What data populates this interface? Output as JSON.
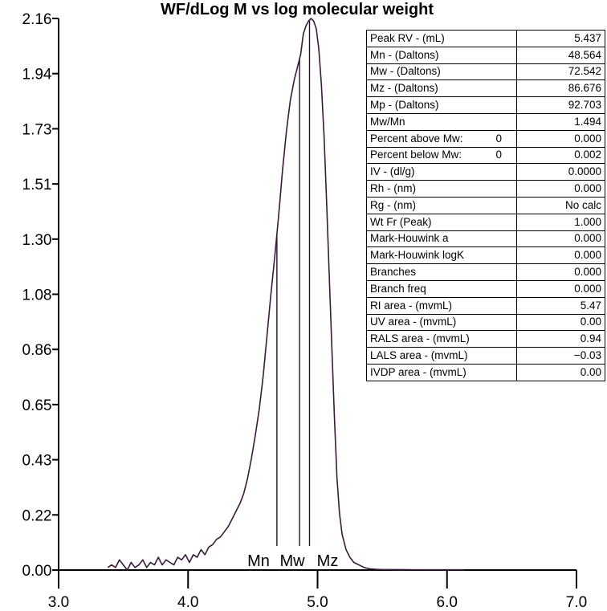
{
  "chart_data": {
    "type": "line",
    "title": "WF/dLog M vs log molecular weight",
    "xlabel": "",
    "ylabel": "",
    "xlim": [
      3.0,
      7.0
    ],
    "ylim": [
      0.0,
      2.16
    ],
    "x_ticks": [
      "3.0",
      "4.0",
      "5.0",
      "6.0",
      "7.0"
    ],
    "y_ticks": [
      "0.00",
      "0.22",
      "0.43",
      "0.65",
      "0.86",
      "1.08",
      "1.30",
      "1.51",
      "1.73",
      "1.94",
      "2.16"
    ],
    "series": [
      {
        "name": "WF/dLog M",
        "color": "#3a1a3a",
        "x": [
          3.38,
          3.41,
          3.44,
          3.47,
          3.5,
          3.53,
          3.56,
          3.59,
          3.62,
          3.65,
          3.68,
          3.71,
          3.74,
          3.77,
          3.8,
          3.83,
          3.86,
          3.89,
          3.92,
          3.95,
          3.98,
          4.01,
          4.04,
          4.07,
          4.1,
          4.13,
          4.16,
          4.19,
          4.22,
          4.25,
          4.28,
          4.31,
          4.34,
          4.37,
          4.4,
          4.43,
          4.46,
          4.49,
          4.52,
          4.55,
          4.58,
          4.61,
          4.64,
          4.67,
          4.7,
          4.73,
          4.76,
          4.79,
          4.82,
          4.85,
          4.87,
          4.89,
          4.91,
          4.93,
          4.95,
          4.97,
          4.99,
          5.01,
          5.03,
          5.05,
          5.07,
          5.09,
          5.11,
          5.13,
          5.15,
          5.17,
          5.19,
          5.22,
          5.25,
          5.28,
          5.32,
          5.36,
          5.4,
          5.45,
          5.5,
          5.6,
          5.75,
          5.9,
          6.05,
          6.13
        ],
        "y": [
          0.01,
          0.02,
          0.01,
          0.04,
          0.02,
          0.0,
          0.03,
          0.01,
          0.02,
          0.04,
          0.01,
          0.03,
          0.02,
          0.05,
          0.02,
          0.04,
          0.03,
          0.02,
          0.05,
          0.04,
          0.06,
          0.03,
          0.06,
          0.05,
          0.08,
          0.06,
          0.09,
          0.1,
          0.12,
          0.13,
          0.15,
          0.17,
          0.2,
          0.23,
          0.26,
          0.3,
          0.36,
          0.44,
          0.53,
          0.63,
          0.76,
          0.92,
          1.08,
          1.23,
          1.39,
          1.57,
          1.72,
          1.84,
          1.92,
          1.98,
          2.02,
          2.1,
          2.13,
          2.15,
          2.16,
          2.15,
          2.12,
          2.04,
          1.9,
          1.7,
          1.44,
          1.16,
          0.88,
          0.6,
          0.36,
          0.22,
          0.14,
          0.08,
          0.05,
          0.03,
          0.02,
          0.01,
          0.005,
          0.003,
          0.002,
          0.002,
          0.001,
          0.001,
          0.001,
          0.001
        ]
      }
    ],
    "markers": [
      {
        "label": "Mn",
        "x": 4.686
      },
      {
        "label": "Mw",
        "x": 4.861
      },
      {
        "label": "Mz",
        "x": 4.938
      }
    ]
  },
  "table": {
    "rows": [
      {
        "label": "Peak RV - (mL)",
        "value": "5.437"
      },
      {
        "label": "Mn - (Daltons)",
        "value": "48.564"
      },
      {
        "label": "Mw - (Daltons)",
        "value": "72.542"
      },
      {
        "label": "Mz - (Daltons)",
        "value": "86.676"
      },
      {
        "label": "Mp - (Daltons)",
        "value": "92.703"
      },
      {
        "label": "Mw/Mn",
        "value": "1.494"
      },
      {
        "label": "Percent above Mw:",
        "extra": "0",
        "value": "0.000"
      },
      {
        "label": "Percent below Mw:",
        "extra": "0",
        "value": "0.002"
      },
      {
        "label": "IV - (dl/g)",
        "value": "0.0000"
      },
      {
        "label": "Rh - (nm)",
        "value": "0.000"
      },
      {
        "label": "Rg - (nm)",
        "value": "No calc"
      },
      {
        "label": "Wt Fr  (Peak)",
        "value": "1.000"
      },
      {
        "label": "Mark-Houwink a",
        "value": "0.000"
      },
      {
        "label": "Mark-Houwink logK",
        "value": "0.000"
      },
      {
        "label": "Branches",
        "value": "0.000"
      },
      {
        "label": "Branch freq",
        "value": "0.000"
      },
      {
        "label": "RI area - (mvmL)",
        "value": "5.47"
      },
      {
        "label": "UV area - (mvmL)",
        "value": "0.00"
      },
      {
        "label": "RALS area - (mvmL)",
        "value": "0.94"
      },
      {
        "label": "LALS area - (mvmL)",
        "value": "−0.03"
      },
      {
        "label": "IVDP area - (mvmL)",
        "value": "0.00"
      }
    ]
  }
}
